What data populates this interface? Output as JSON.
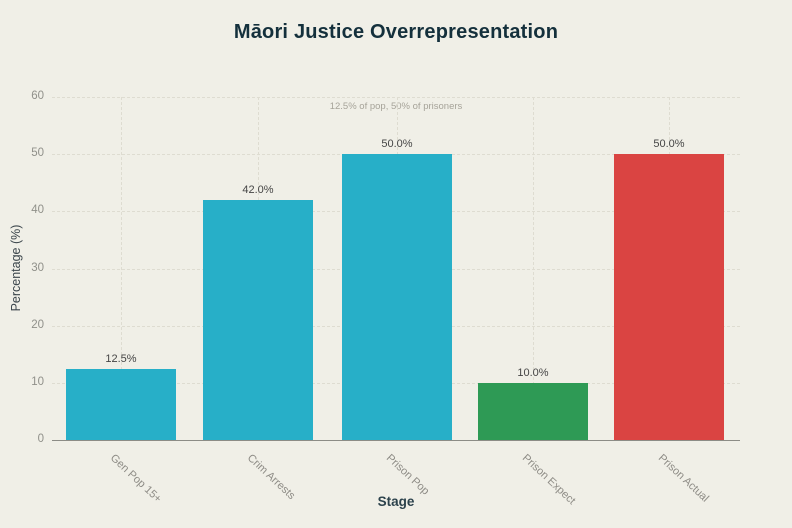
{
  "page": {
    "background_color": "#F0EFE7"
  },
  "chart_data": {
    "type": "bar",
    "title": "Māori Justice Overrepresentation",
    "xlabel": "Stage",
    "ylabel": "Percentage (%)",
    "categories": [
      "Gen Pop 15+",
      "Crim Arrests",
      "Prison Pop",
      "Prison Expect",
      "Prison Actual"
    ],
    "values": [
      12.5,
      42.0,
      50.0,
      10.0,
      50.0
    ],
    "bar_labels": [
      "12.5%",
      "42.0%",
      "50.0%",
      "10.0%",
      "50.0%"
    ],
    "bar_colors": [
      "#27AFC8",
      "#27AFC8",
      "#27AFC8",
      "#2E9A55",
      "#DA4442"
    ],
    "annotation": "12.5% of pop, 50% of prisoners",
    "ylim": [
      0,
      60
    ],
    "yticks": [
      0,
      10,
      20,
      30,
      40,
      50,
      60
    ],
    "grid": "dashed horizontal gridlines at y ticks, dashed vertical gridlines at bar centers",
    "legend_position": "none",
    "styles": {
      "grid_color": "#DEDCD1",
      "axis_line_color": "#8C8C86",
      "tick_label_color": "#8E8C86",
      "value_label_color": "#454545",
      "title_color": "#14303C",
      "annotation_color": "#A6A399"
    }
  }
}
